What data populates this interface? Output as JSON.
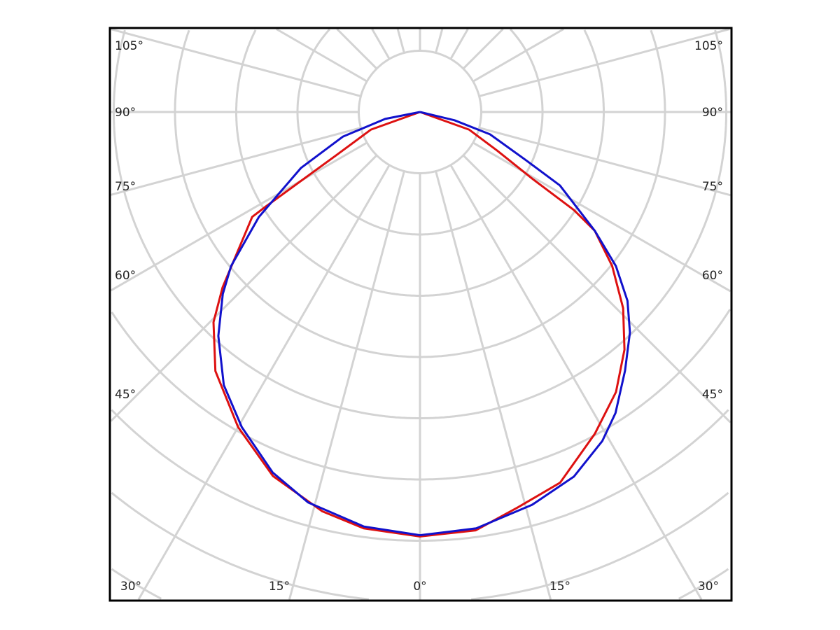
{
  "chart_data": {
    "type": "polar-line",
    "title": "",
    "angle_unit": "degrees",
    "angle_labels_left": [
      "105°",
      "90°",
      "75°",
      "60°",
      "45°"
    ],
    "angle_labels_right": [
      "105°",
      "90°",
      "75°",
      "60°",
      "45°"
    ],
    "angle_labels_bottom": [
      "30°",
      "15°",
      "0°",
      "15°",
      "30°"
    ],
    "angle_grid_step": 15,
    "radial_grid_rings": 9,
    "radial_tick_labels": [],
    "grid": true,
    "legend": "none",
    "series": [
      {
        "color": "#dd1111",
        "points": [
          [
            -90,
            0
          ],
          [
            -70.3,
            0.85
          ],
          [
            -62.7,
            1.54
          ],
          [
            -58.5,
            2.95
          ],
          [
            -58.0,
            3.23
          ],
          [
            -48.4,
            4.31
          ],
          [
            -44.5,
            4.81
          ],
          [
            -38.3,
            5.39
          ],
          [
            -30.0,
            5.94
          ],
          [
            -22.0,
            6.41
          ],
          [
            -13.8,
            6.71
          ],
          [
            -7.7,
            6.86
          ],
          [
            0,
            6.93
          ],
          [
            7.6,
            6.89
          ],
          [
            13.9,
            6.65
          ],
          [
            20.7,
            6.47
          ],
          [
            28.5,
            5.98
          ],
          [
            35.0,
            5.58
          ],
          [
            40.7,
            5.12
          ],
          [
            46.0,
            4.61
          ],
          [
            51.3,
            4.02
          ],
          [
            55.8,
            3.45
          ],
          [
            57.5,
            2.98
          ],
          [
            59.3,
            2.13
          ],
          [
            63.4,
            1.41
          ],
          [
            70.3,
            0.85
          ],
          [
            90,
            0
          ]
        ]
      },
      {
        "color": "#1111cc",
        "points": [
          [
            -90,
            0
          ],
          [
            -78.7,
            0.58
          ],
          [
            -72.3,
            1.32
          ],
          [
            -64.8,
            2.15
          ],
          [
            -56.9,
            3.14
          ],
          [
            -50.8,
            3.98
          ],
          [
            -47.3,
            4.38
          ],
          [
            -42.0,
            4.92
          ],
          [
            -35.7,
            5.49
          ],
          [
            -29.5,
            5.91
          ],
          [
            -22.2,
            6.36
          ],
          [
            -16.0,
            6.63
          ],
          [
            -7.7,
            6.83
          ],
          [
            0,
            6.91
          ],
          [
            7.7,
            6.86
          ],
          [
            15.9,
            6.67
          ],
          [
            22.9,
            6.46
          ],
          [
            29.0,
            6.14
          ],
          [
            33.0,
            5.86
          ],
          [
            38.4,
            5.39
          ],
          [
            43.6,
            4.97
          ],
          [
            47.7,
            4.58
          ],
          [
            51.8,
            4.07
          ],
          [
            55.8,
            3.45
          ],
          [
            62.3,
            2.58
          ],
          [
            65.6,
            1.89
          ],
          [
            72.3,
            1.2
          ],
          [
            76.5,
            0.58
          ],
          [
            90,
            0
          ]
        ]
      }
    ]
  }
}
